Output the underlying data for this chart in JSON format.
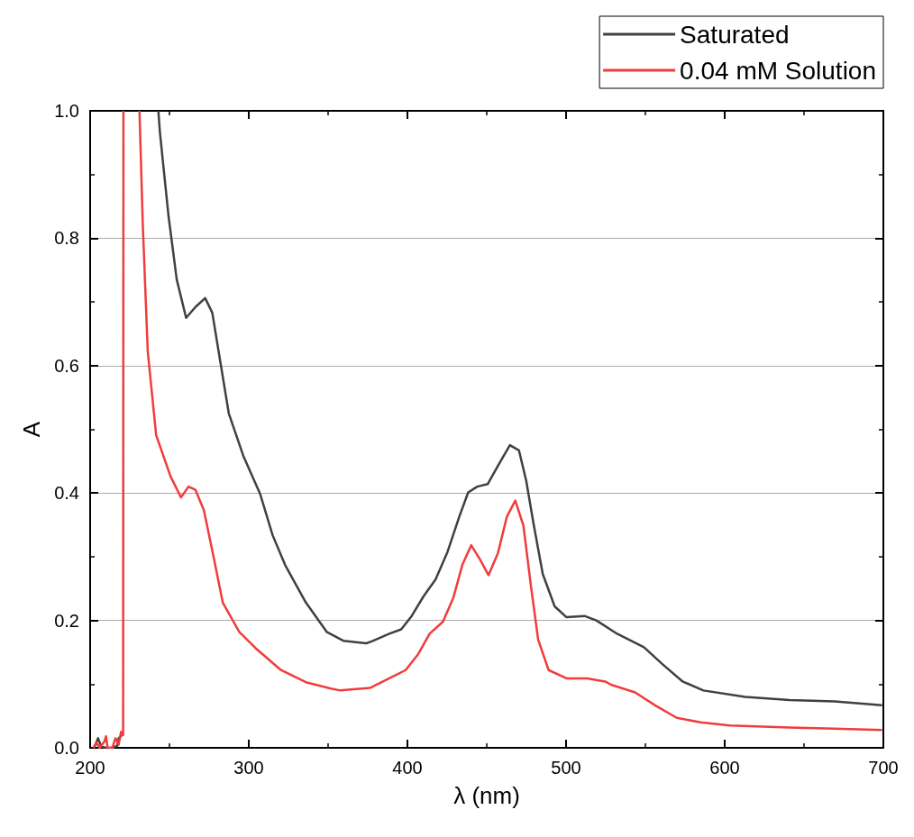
{
  "chart_data": {
    "type": "line",
    "xlabel": "λ (nm)",
    "ylabel": "A",
    "xlim": [
      200,
      700
    ],
    "ylim": [
      0,
      1.0
    ],
    "xticks": [
      200,
      300,
      400,
      500,
      600,
      700
    ],
    "yticks": [
      {
        "value": 0,
        "label": "0.0"
      },
      0.2,
      0.4,
      0.6,
      0.8,
      {
        "value": 1,
        "label": "1.0"
      }
    ],
    "grid": "y",
    "legend": "top right",
    "marker": "none",
    "line_style": "solid",
    "series": [
      {
        "name": "Saturated",
        "color": "#404040",
        "x": [
          202,
          203,
          205,
          207,
          210,
          214,
          217,
          218,
          220,
          221.5,
          243,
          244,
          249.4,
          254.6,
          260.5,
          266.4,
          272.5,
          277,
          282.2,
          287.4,
          296.6,
          307.1,
          315,
          322.9,
          336,
          349.1,
          359.6,
          374,
          377.5,
          388.6,
          396.1,
          402.7,
          410.2,
          417.7,
          425.2,
          432.7,
          438.3,
          444,
          450.6,
          457.1,
          464.6,
          470.3,
          474.9,
          479.7,
          485.3,
          492.8,
          500.3,
          511.6,
          519.1,
          532.2,
          549.1,
          560.4,
          573.5,
          586.6,
          612.9,
          641,
          669.2,
          699.2
        ],
        "values": [
          0,
          0.003,
          0.015,
          0.002,
          0,
          0,
          0.003,
          0.015,
          0.02,
          null,
          1.0,
          0.966,
          0.835,
          0.735,
          0.675,
          0.692,
          0.706,
          0.683,
          0.604,
          0.525,
          0.458,
          0.399,
          0.334,
          0.287,
          0.228,
          0.182,
          0.168,
          0.164,
          0.167,
          0.179,
          0.186,
          0.207,
          0.238,
          0.264,
          0.307,
          0.363,
          0.401,
          0.41,
          0.414,
          0.443,
          0.475,
          0.467,
          0.419,
          0.349,
          0.273,
          0.222,
          0.205,
          0.207,
          0.2,
          0.179,
          0.158,
          0.132,
          0.104,
          0.09,
          0.08,
          0.075,
          0.073,
          0.067
        ]
      },
      {
        "name": "0.04 mM Solution",
        "color": "#f03c3c",
        "x": [
          202,
          204,
          206,
          209,
          210,
          211,
          214,
          216,
          218,
          219.5,
          220.8,
          221,
          226,
          231.1,
          233.2,
          236.3,
          241.6,
          250.7,
          257.3,
          262,
          266.4,
          271.7,
          278.3,
          283.6,
          294,
          304.5,
          320.3,
          336,
          351.7,
          357.7,
          376.4,
          387.7,
          398.9,
          406.5,
          414,
          422.4,
          429,
          434.6,
          440.2,
          445.9,
          451.1,
          457.1,
          462.7,
          468,
          473.1,
          477.8,
          482.4,
          489,
          500.3,
          513.4,
          524.6,
          528.4,
          543.5,
          556.6,
          569.8,
          584.8,
          603.5,
          641,
          669.2,
          699.2
        ],
        "values": [
          0,
          0.008,
          0,
          0.01,
          0.018,
          0,
          0,
          0.015,
          0.005,
          0.025,
          0.02,
          1.0,
          null,
          1.0,
          0.821,
          0.623,
          0.491,
          0.426,
          0.393,
          0.41,
          0.405,
          0.373,
          0.294,
          0.228,
          0.182,
          0.156,
          0.122,
          0.103,
          0.093,
          0.09,
          0.094,
          0.108,
          0.122,
          0.146,
          0.179,
          0.198,
          0.236,
          0.287,
          0.318,
          0.295,
          0.271,
          0.306,
          0.363,
          0.388,
          0.349,
          0.255,
          0.17,
          0.122,
          0.109,
          0.109,
          0.104,
          0.099,
          0.087,
          0.066,
          0.047,
          0.04,
          0.035,
          0.032,
          0.03,
          0.028
        ]
      }
    ]
  }
}
